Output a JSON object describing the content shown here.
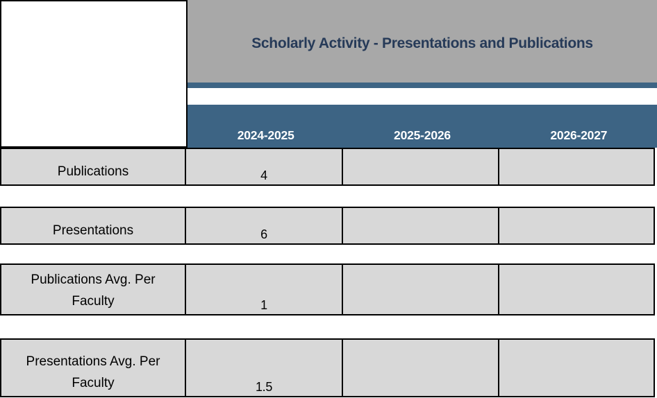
{
  "chart_data": {
    "type": "table",
    "title": "Scholarly Activity - Presentations and Publications",
    "columns": [
      "2024-2025",
      "2025-2026",
      "2026-2027"
    ],
    "rows": [
      {
        "label": "Publications",
        "values": [
          "4",
          "",
          ""
        ]
      },
      {
        "label": "Presentations",
        "values": [
          "6",
          "",
          ""
        ]
      },
      {
        "label": "Publications Avg. Per Faculty",
        "values": [
          "1",
          "",
          ""
        ]
      },
      {
        "label": "Presentations Avg. Per Faculty",
        "values": [
          "1.5",
          "",
          ""
        ]
      }
    ],
    "numeric_values": {
      "publications_2024_2025": 4,
      "presentations_2024_2025": 6,
      "publications_avg_per_faculty_2024_2025": 1,
      "presentations_avg_per_faculty_2024_2025": 1.5
    },
    "layout": {
      "legend": "none",
      "grid": "black cell borders, rows separated by white gaps"
    }
  },
  "colors": {
    "title_band_gray": "#a8a8a8",
    "accent_blue": "#3d6484",
    "title_text_navy": "#263a58",
    "cell_gray": "#d8d8d8",
    "border_black": "#000000",
    "year_text_white": "#ffffff"
  }
}
